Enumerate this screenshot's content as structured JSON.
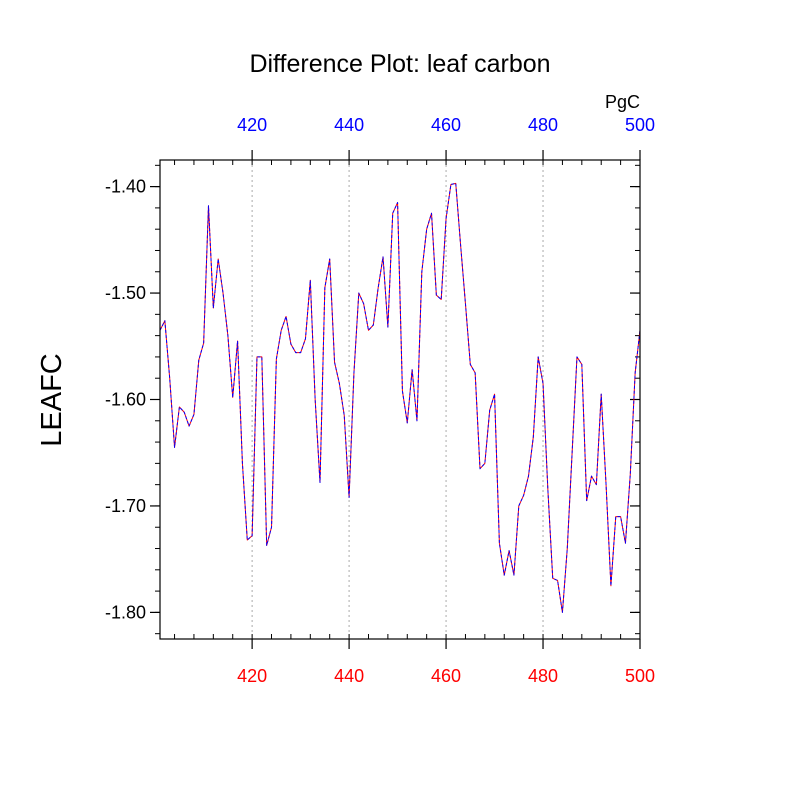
{
  "chart_data": {
    "type": "line",
    "title": "Difference Plot: leaf carbon",
    "units_label": "PgC",
    "ylabel": "LEAFC",
    "xlabel": "",
    "xlim": [
      401,
      500
    ],
    "ylim": [
      -1.825,
      -1.375
    ],
    "x_ticks": [
      420,
      440,
      460,
      480,
      500
    ],
    "x_tick_labels": [
      "420",
      "440",
      "460",
      "480",
      "500"
    ],
    "y_ticks": [
      -1.4,
      -1.5,
      -1.6,
      -1.7,
      -1.8
    ],
    "y_tick_labels": [
      "-1.40",
      "-1.50",
      "-1.60",
      "-1.70",
      "-1.80"
    ],
    "grid": "vertical dotted at major x ticks",
    "colors": {
      "bottom_tick_labels": "#ff0000",
      "top_tick_labels": "#0000ff",
      "series_1": "#ff0000",
      "series_2": "#0000ff"
    },
    "series": [
      {
        "style": "solid",
        "color": "#ff0000",
        "x": [
          401,
          402,
          403,
          404,
          405,
          406,
          407,
          408,
          409,
          410,
          411,
          412,
          413,
          414,
          415,
          416,
          417,
          418,
          419,
          420,
          421,
          422,
          423,
          424,
          425,
          426,
          427,
          428,
          429,
          430,
          431,
          432,
          433,
          434,
          435,
          436,
          437,
          438,
          439,
          440,
          441,
          442,
          443,
          444,
          445,
          446,
          447,
          448,
          449,
          450,
          451,
          452,
          453,
          454,
          455,
          456,
          457,
          458,
          459,
          460,
          461,
          462,
          463,
          464,
          465,
          466,
          467,
          468,
          469,
          470,
          471,
          472,
          473,
          474,
          475,
          476,
          477,
          478,
          479,
          480,
          481,
          482,
          483,
          484,
          485,
          486,
          487,
          488,
          489,
          490,
          491,
          492,
          493,
          494,
          495,
          496,
          497,
          498,
          499,
          500
        ],
        "values": [
          -1.535,
          -1.526,
          -1.58,
          -1.645,
          -1.607,
          -1.612,
          -1.625,
          -1.614,
          -1.563,
          -1.547,
          -1.418,
          -1.514,
          -1.468,
          -1.5,
          -1.54,
          -1.598,
          -1.545,
          -1.66,
          -1.732,
          -1.728,
          -1.56,
          -1.56,
          -1.737,
          -1.72,
          -1.562,
          -1.535,
          -1.522,
          -1.548,
          -1.556,
          -1.556,
          -1.543,
          -1.488,
          -1.6,
          -1.678,
          -1.495,
          -1.468,
          -1.565,
          -1.585,
          -1.615,
          -1.692,
          -1.575,
          -1.5,
          -1.51,
          -1.535,
          -1.53,
          -1.495,
          -1.466,
          -1.532,
          -1.425,
          -1.415,
          -1.592,
          -1.622,
          -1.572,
          -1.62,
          -1.48,
          -1.44,
          -1.425,
          -1.502,
          -1.506,
          -1.43,
          -1.398,
          -1.397,
          -1.455,
          -1.51,
          -1.567,
          -1.575,
          -1.665,
          -1.66,
          -1.61,
          -1.595,
          -1.735,
          -1.765,
          -1.742,
          -1.765,
          -1.7,
          -1.69,
          -1.672,
          -1.635,
          -1.56,
          -1.585,
          -1.685,
          -1.768,
          -1.77,
          -1.8,
          -1.74,
          -1.65,
          -1.56,
          -1.567,
          -1.695,
          -1.672,
          -1.68,
          -1.595,
          -1.68,
          -1.775,
          -1.71,
          -1.71,
          -1.735,
          -1.67,
          -1.575,
          -1.535
        ]
      },
      {
        "style": "dashed",
        "color": "#0000ff",
        "x": [
          401,
          402,
          403,
          404,
          405,
          406,
          407,
          408,
          409,
          410,
          411,
          412,
          413,
          414,
          415,
          416,
          417,
          418,
          419,
          420,
          421,
          422,
          423,
          424,
          425,
          426,
          427,
          428,
          429,
          430,
          431,
          432,
          433,
          434,
          435,
          436,
          437,
          438,
          439,
          440,
          441,
          442,
          443,
          444,
          445,
          446,
          447,
          448,
          449,
          450,
          451,
          452,
          453,
          454,
          455,
          456,
          457,
          458,
          459,
          460,
          461,
          462,
          463,
          464,
          465,
          466,
          467,
          468,
          469,
          470,
          471,
          472,
          473,
          474,
          475,
          476,
          477,
          478,
          479,
          480,
          481,
          482,
          483,
          484,
          485,
          486,
          487,
          488,
          489,
          490,
          491,
          492,
          493,
          494,
          495,
          496,
          497,
          498,
          499,
          500
        ],
        "values": [
          -1.535,
          -1.526,
          -1.58,
          -1.645,
          -1.607,
          -1.612,
          -1.625,
          -1.614,
          -1.563,
          -1.547,
          -1.418,
          -1.514,
          -1.468,
          -1.5,
          -1.54,
          -1.598,
          -1.545,
          -1.66,
          -1.732,
          -1.728,
          -1.56,
          -1.56,
          -1.737,
          -1.72,
          -1.562,
          -1.535,
          -1.522,
          -1.548,
          -1.556,
          -1.556,
          -1.543,
          -1.488,
          -1.6,
          -1.678,
          -1.495,
          -1.468,
          -1.565,
          -1.585,
          -1.615,
          -1.692,
          -1.575,
          -1.5,
          -1.51,
          -1.535,
          -1.53,
          -1.495,
          -1.466,
          -1.532,
          -1.425,
          -1.415,
          -1.592,
          -1.622,
          -1.572,
          -1.62,
          -1.48,
          -1.44,
          -1.425,
          -1.502,
          -1.506,
          -1.43,
          -1.398,
          -1.397,
          -1.455,
          -1.51,
          -1.567,
          -1.575,
          -1.665,
          -1.66,
          -1.61,
          -1.595,
          -1.735,
          -1.765,
          -1.742,
          -1.765,
          -1.7,
          -1.69,
          -1.672,
          -1.635,
          -1.56,
          -1.585,
          -1.685,
          -1.768,
          -1.77,
          -1.8,
          -1.74,
          -1.65,
          -1.56,
          -1.567,
          -1.695,
          -1.672,
          -1.68,
          -1.595,
          -1.68,
          -1.775,
          -1.71,
          -1.71,
          -1.735,
          -1.67,
          -1.575,
          -1.535
        ]
      }
    ]
  }
}
